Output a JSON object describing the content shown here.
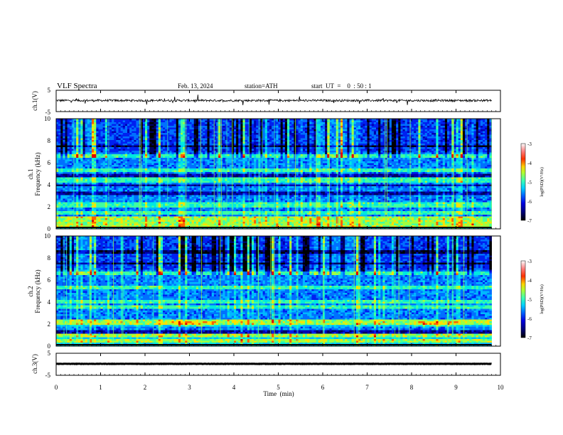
{
  "header": {
    "title": "VLF  Spectra",
    "date": "Feb. 13, 2024",
    "station": "station=ATH",
    "start_ut": "start  UT  =    0  : 50 : 1"
  },
  "chart_data": [
    {
      "type": "line",
      "id": "ch1-waveform",
      "ylabel": "ch.1(V)",
      "yticks": [
        "5",
        "-5"
      ],
      "ylim": [
        -5,
        5
      ],
      "xlim": [
        0,
        10
      ],
      "baseline": 0.2
    },
    {
      "type": "heatmap",
      "id": "ch1-spectrogram",
      "ylabel_1": "ch.1",
      "ylabel_2": "Frequency  (kHz)",
      "yticks": [
        "0",
        "2",
        "4",
        "6",
        "8",
        "10"
      ],
      "ylim": [
        0,
        10
      ],
      "xlim": [
        0,
        9.8
      ],
      "colorbar": {
        "label": "log(PSD)(V²/Hz)",
        "ticks": [
          "-3",
          "-4",
          "-5",
          "-6",
          "-7"
        ],
        "range": [
          -7,
          -3
        ]
      },
      "features": {
        "strong_bands_khz": [
          0.3,
          0.6,
          1.0,
          1.4,
          2.0,
          2.3,
          4.2,
          4.5,
          5.3,
          6.6
        ],
        "dark_bands_khz": [
          3.2,
          4.0,
          4.8,
          7.5
        ]
      }
    },
    {
      "type": "heatmap",
      "id": "ch2-spectrogram",
      "ylabel_1": "ch.2",
      "ylabel_2": "Frequency  (kHz)",
      "yticks": [
        "0",
        "2",
        "4",
        "6",
        "8",
        "10"
      ],
      "ylim": [
        0,
        10
      ],
      "xlim": [
        0,
        9.8
      ],
      "colorbar": {
        "label": "log(PSD)(V²/Hz)",
        "ticks": [
          "-3",
          "-4",
          "-5",
          "-6",
          "-7"
        ],
        "range": [
          -7,
          -3
        ]
      },
      "features": {
        "strong_bands_khz": [
          0.5,
          1.0,
          2.0,
          2.2,
          3.5,
          4.0,
          5.3,
          6.6
        ],
        "dark_bands_khz": [
          1.3,
          7.5,
          8.5
        ]
      }
    },
    {
      "type": "line",
      "id": "ch3-waveform",
      "ylabel": "ch.3(V)",
      "yticks": [
        "5",
        "-5"
      ],
      "ylim": [
        -5,
        5
      ],
      "xlim": [
        0,
        10
      ],
      "baseline": 0.2
    }
  ],
  "xaxis": {
    "label": "Time  (min)",
    "ticks": [
      "0",
      "1",
      "2",
      "3",
      "4",
      "5",
      "6",
      "7",
      "8",
      "9",
      "10"
    ]
  },
  "colors": {
    "colormap": [
      "#000000",
      "#000070",
      "#0000d0",
      "#0050ff",
      "#00c8ff",
      "#40ffc0",
      "#a0ff40",
      "#ffe000",
      "#ff6000",
      "#e00000",
      "#ff9090",
      "#ffffff"
    ]
  }
}
